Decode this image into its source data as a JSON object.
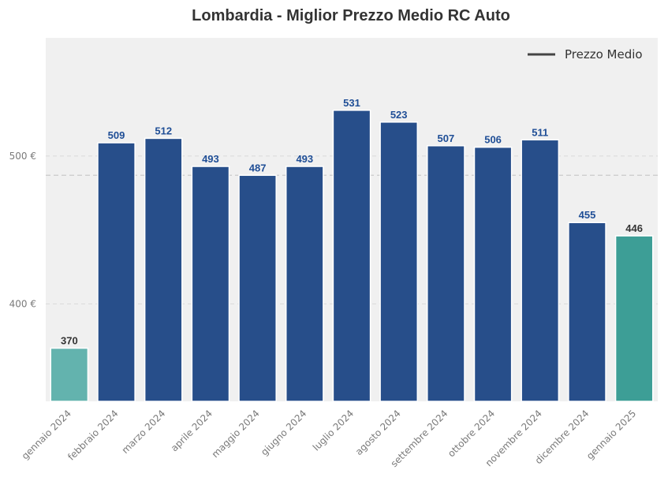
{
  "chart_data": {
    "type": "bar",
    "title": "Lombardia - Miglior Prezzo Medio RC Auto",
    "xlabel": "",
    "ylabel": "",
    "categories": [
      "gennaio 2024",
      "febbraio 2024",
      "marzo 2024",
      "aprile 2024",
      "maggio 2024",
      "giugno 2024",
      "luglio 2024",
      "agosto 2024",
      "settembre 2024",
      "ottobre 2024",
      "novembre 2024",
      "dicembre 2024",
      "gennaio 2025"
    ],
    "values": [
      370,
      509,
      512,
      493,
      487,
      493,
      531,
      523,
      507,
      506,
      511,
      455,
      446
    ],
    "value_labels": [
      "370",
      "509",
      "512",
      "493",
      "487",
      "493",
      "531",
      "523",
      "507",
      "506",
      "511",
      "455",
      "446"
    ],
    "bar_colors": [
      "#63b3ae",
      "#274e8a",
      "#274e8a",
      "#274e8a",
      "#274e8a",
      "#274e8a",
      "#274e8a",
      "#274e8a",
      "#274e8a",
      "#274e8a",
      "#274e8a",
      "#274e8a",
      "#3d9e96"
    ],
    "label_colors": [
      "#333333",
      "#1f4e96",
      "#1f4e96",
      "#1f4e96",
      "#1f4e96",
      "#1f4e96",
      "#1f4e96",
      "#1f4e96",
      "#1f4e96",
      "#1f4e96",
      "#1f4e96",
      "#1f4e96",
      "#333333"
    ],
    "ylim": [
      334,
      580
    ],
    "yticks": [
      400,
      500
    ],
    "ytick_labels": [
      "400 €",
      "500 €"
    ],
    "grid": true,
    "average_line": {
      "value": 487,
      "style": "dashed"
    },
    "legend": {
      "position": "top-right",
      "entries": [
        {
          "label": "Prezzo Medio",
          "style": "line"
        }
      ]
    },
    "colors": {
      "background": "#f0f0f0",
      "grid": "#d9d9d9",
      "average_line": "#c9c9c9"
    }
  }
}
